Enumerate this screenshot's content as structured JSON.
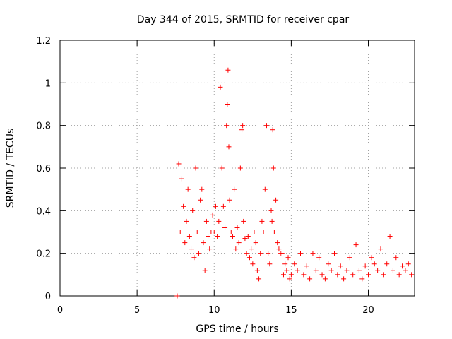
{
  "chart_data": {
    "type": "scatter",
    "title": "Day 344 of 2015, SRMTID for receiver cpar",
    "xlabel": "GPS time / hours",
    "ylabel": "SRMTID / TECUs",
    "xlim": [
      0,
      23
    ],
    "ylim": [
      0,
      1.2
    ],
    "xticks": [
      0,
      5,
      10,
      15,
      20
    ],
    "xtick_labels": [
      "0",
      "5",
      "10",
      "15",
      "20"
    ],
    "yticks": [
      0,
      0.2,
      0.4,
      0.6,
      0.8,
      1.0,
      1.2
    ],
    "ytick_labels": [
      "0",
      "0.2",
      "0.4",
      "0.6",
      "0.8",
      "1",
      "1.2"
    ],
    "grid": true,
    "marker": "+",
    "marker_color": "#ff0000",
    "series": [
      {
        "name": "SRMTID",
        "x": [
          7.6,
          7.6,
          7.7,
          7.8,
          7.9,
          8.0,
          8.1,
          8.2,
          8.3,
          8.4,
          8.5,
          8.6,
          8.7,
          8.8,
          8.9,
          9.0,
          9.1,
          9.2,
          9.3,
          9.4,
          9.5,
          9.6,
          9.7,
          9.8,
          9.9,
          10.0,
          10.1,
          10.2,
          10.3,
          10.4,
          10.5,
          10.6,
          10.7,
          10.8,
          10.85,
          10.9,
          10.95,
          11.0,
          11.1,
          11.2,
          11.3,
          11.4,
          11.5,
          11.6,
          11.7,
          11.8,
          11.85,
          11.9,
          12.0,
          12.1,
          12.2,
          12.3,
          12.4,
          12.5,
          12.6,
          12.7,
          12.8,
          12.9,
          13.0,
          13.1,
          13.2,
          13.3,
          13.4,
          13.5,
          13.6,
          13.7,
          13.75,
          13.8,
          13.85,
          13.9,
          14.0,
          14.1,
          14.2,
          14.3,
          14.4,
          14.5,
          14.6,
          14.7,
          14.8,
          14.9,
          15.0,
          15.2,
          15.4,
          15.6,
          15.8,
          16.0,
          16.2,
          16.4,
          16.6,
          16.8,
          17.0,
          17.2,
          17.4,
          17.6,
          17.8,
          18.0,
          18.2,
          18.4,
          18.6,
          18.8,
          19.0,
          19.2,
          19.4,
          19.6,
          19.8,
          20.0,
          20.2,
          20.4,
          20.6,
          20.8,
          21.0,
          21.2,
          21.4,
          21.6,
          21.8,
          22.0,
          22.2,
          22.4,
          22.6,
          22.8
        ],
        "y": [
          0.0,
          0.0,
          0.62,
          0.3,
          0.55,
          0.42,
          0.25,
          0.35,
          0.5,
          0.28,
          0.22,
          0.4,
          0.18,
          0.6,
          0.3,
          0.2,
          0.45,
          0.5,
          0.25,
          0.12,
          0.35,
          0.28,
          0.22,
          0.3,
          0.38,
          0.3,
          0.42,
          0.28,
          0.35,
          0.98,
          0.6,
          0.42,
          0.32,
          0.8,
          0.9,
          1.06,
          0.7,
          0.45,
          0.3,
          0.28,
          0.5,
          0.22,
          0.32,
          0.25,
          0.6,
          0.78,
          0.8,
          0.35,
          0.27,
          0.2,
          0.28,
          0.18,
          0.22,
          0.15,
          0.3,
          0.25,
          0.12,
          0.08,
          0.2,
          0.35,
          0.3,
          0.5,
          0.8,
          0.2,
          0.15,
          0.4,
          0.35,
          0.78,
          0.6,
          0.3,
          0.45,
          0.25,
          0.22,
          0.2,
          0.2,
          0.1,
          0.15,
          0.12,
          0.18,
          0.08,
          0.1,
          0.15,
          0.12,
          0.2,
          0.1,
          0.14,
          0.08,
          0.2,
          0.12,
          0.18,
          0.1,
          0.08,
          0.15,
          0.12,
          0.2,
          0.1,
          0.14,
          0.08,
          0.12,
          0.18,
          0.1,
          0.24,
          0.12,
          0.08,
          0.14,
          0.1,
          0.18,
          0.15,
          0.12,
          0.22,
          0.1,
          0.15,
          0.28,
          0.12,
          0.18,
          0.1,
          0.14,
          0.12,
          0.15,
          0.1
        ]
      }
    ]
  }
}
